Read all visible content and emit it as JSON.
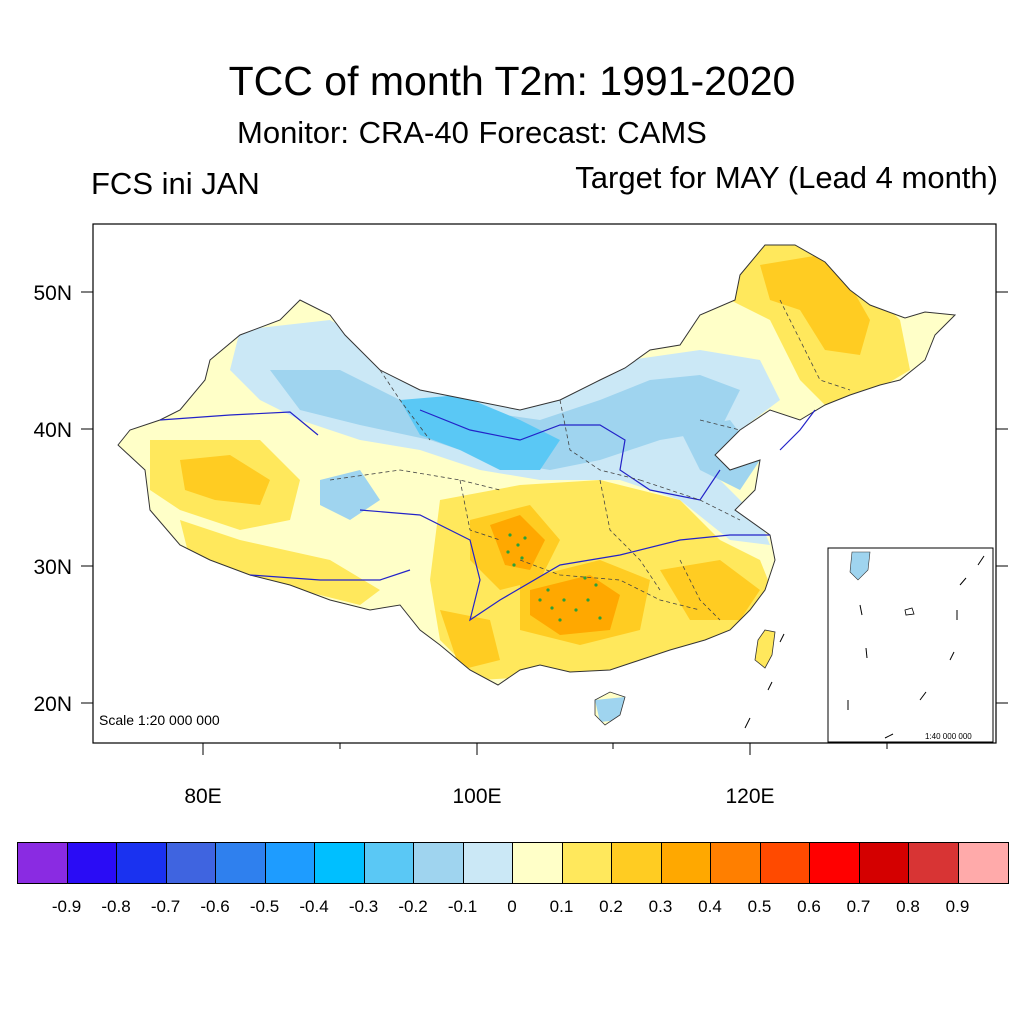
{
  "title": "TCC of month T2m: 1991-2020",
  "subtitle": "Monitor: CRA-40   Forecast: CAMS",
  "left_label": "FCS ini JAN",
  "right_label": "Target for MAY (Lead 4 month)",
  "map": {
    "lat_ticks": [
      "50N",
      "40N",
      "30N",
      "20N"
    ],
    "lon_ticks": [
      "80E",
      "100E",
      "120E"
    ],
    "scale_label": "Scale 1:20 000 000",
    "inset_scale_label": "1:40 000 000",
    "lat_range": [
      17,
      55
    ],
    "lon_range": [
      72,
      138
    ]
  },
  "colorbar": {
    "colors": [
      "#8a2be2",
      "#2a0cf5",
      "#1a32f0",
      "#3f64e0",
      "#2f80ee",
      "#1e9cff",
      "#00bfff",
      "#5ac8f5",
      "#9fd4ef",
      "#cbe8f6",
      "#ffffc8",
      "#ffe85c",
      "#ffcc22",
      "#ffa800",
      "#ff7f00",
      "#ff4a00",
      "#ff0000",
      "#d40000",
      "#d83434",
      "#ffaaaa"
    ],
    "labels": [
      "-0.9",
      "-0.8",
      "-0.7",
      "-0.6",
      "-0.5",
      "-0.4",
      "-0.3",
      "-0.2",
      "-0.1",
      "0",
      "0.1",
      "0.2",
      "0.3",
      "0.4",
      "0.5",
      "0.6",
      "0.7",
      "0.8",
      "0.9"
    ]
  }
}
